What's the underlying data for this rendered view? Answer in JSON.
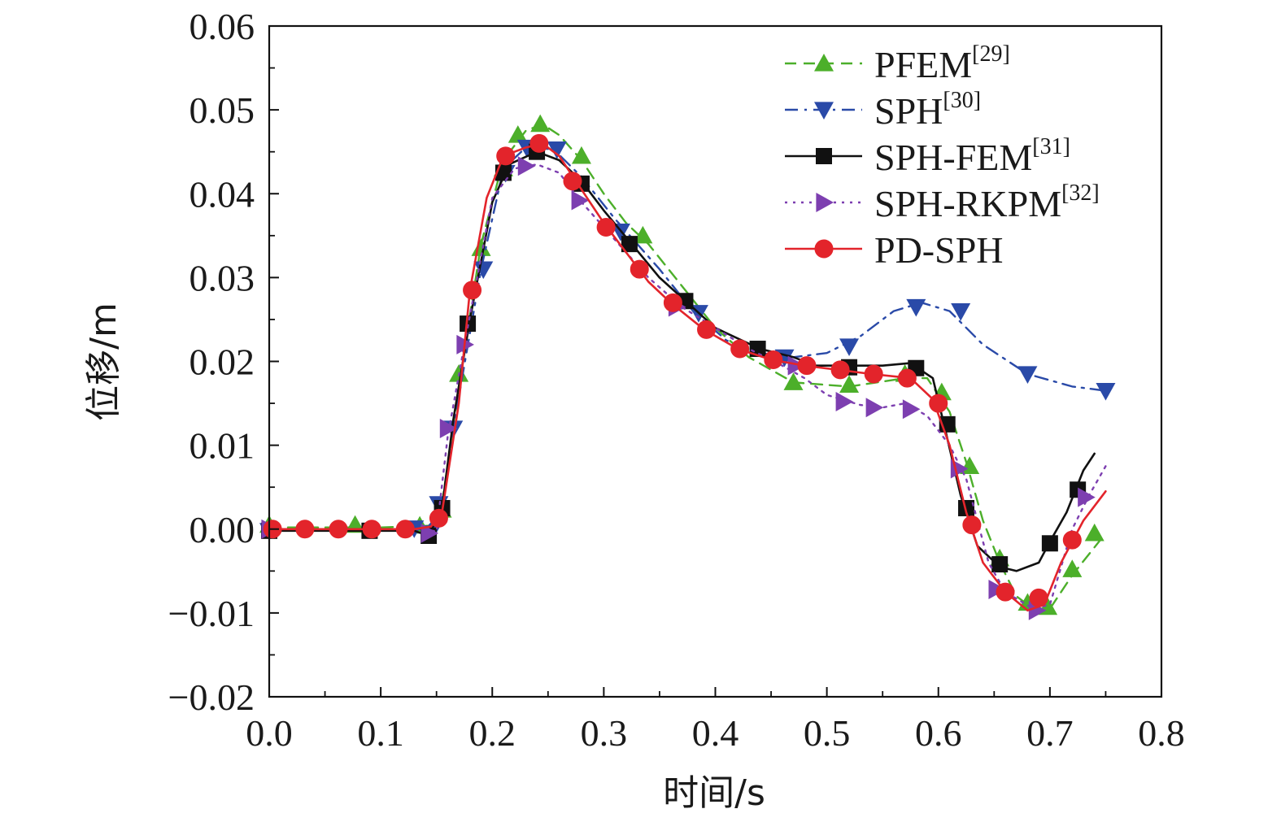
{
  "chart_data": {
    "type": "line",
    "title": "",
    "xlabel": "时间/s",
    "ylabel": "位移/m",
    "xlim": [
      0.0,
      0.8
    ],
    "ylim": [
      -0.02,
      0.06
    ],
    "xticks": [
      "0.0",
      "0.1",
      "0.2",
      "0.3",
      "0.4",
      "0.5",
      "0.6",
      "0.7",
      "0.8"
    ],
    "yticks": [
      "−0.02",
      "−0.01",
      "0.00",
      "0.01",
      "0.02",
      "0.03",
      "0.04",
      "0.05",
      "0.06"
    ],
    "legend_position": "top-right",
    "series": [
      {
        "name": "PFEM",
        "ref": "[29]",
        "color": "#4caf2a",
        "line_style": "dashed",
        "marker": "triangle-up",
        "curve": [
          [
            0.0,
            0.0002
          ],
          [
            0.1,
            0.0002
          ],
          [
            0.145,
            0.0004
          ],
          [
            0.155,
            0.003
          ],
          [
            0.17,
            0.017
          ],
          [
            0.19,
            0.034
          ],
          [
            0.21,
            0.044
          ],
          [
            0.23,
            0.0475
          ],
          [
            0.245,
            0.0483
          ],
          [
            0.26,
            0.047
          ],
          [
            0.28,
            0.044
          ],
          [
            0.3,
            0.04
          ],
          [
            0.32,
            0.0365
          ],
          [
            0.34,
            0.034
          ],
          [
            0.37,
            0.029
          ],
          [
            0.4,
            0.024
          ],
          [
            0.43,
            0.0205
          ],
          [
            0.47,
            0.0175
          ],
          [
            0.5,
            0.0172
          ],
          [
            0.52,
            0.017
          ],
          [
            0.545,
            0.0175
          ],
          [
            0.57,
            0.018
          ],
          [
            0.59,
            0.018
          ],
          [
            0.61,
            0.014
          ],
          [
            0.625,
            0.008
          ],
          [
            0.64,
            0.001
          ],
          [
            0.655,
            -0.004
          ],
          [
            0.67,
            -0.008
          ],
          [
            0.685,
            -0.0095
          ],
          [
            0.7,
            -0.0095
          ],
          [
            0.72,
            -0.0055
          ],
          [
            0.75,
            -0.0005
          ]
        ],
        "markers": [
          [
            0.0,
            0.0005
          ],
          [
            0.077,
            0.0005
          ],
          [
            0.135,
            0.0004
          ],
          [
            0.155,
            0.0023
          ],
          [
            0.17,
            0.0185
          ],
          [
            0.19,
            0.0335
          ],
          [
            0.21,
            0.043
          ],
          [
            0.223,
            0.047
          ],
          [
            0.243,
            0.0483
          ],
          [
            0.28,
            0.0445
          ],
          [
            0.335,
            0.035
          ],
          [
            0.47,
            0.0175
          ],
          [
            0.52,
            0.0172
          ],
          [
            0.57,
            0.0185
          ],
          [
            0.603,
            0.0163
          ],
          [
            0.628,
            0.0075
          ],
          [
            0.655,
            -0.0035
          ],
          [
            0.68,
            -0.0088
          ],
          [
            0.698,
            -0.0093
          ],
          [
            0.72,
            -0.0048
          ],
          [
            0.74,
            -0.0005
          ]
        ]
      },
      {
        "name": "SPH",
        "ref": "[30]",
        "color": "#2a4aa8",
        "line_style": "dash-dot",
        "marker": "triangle-down",
        "curve": [
          [
            0.0,
            0.0
          ],
          [
            0.1,
            0.0
          ],
          [
            0.14,
            0.0
          ],
          [
            0.155,
            0.002
          ],
          [
            0.165,
            0.012
          ],
          [
            0.19,
            0.031
          ],
          [
            0.21,
            0.043
          ],
          [
            0.23,
            0.0455
          ],
          [
            0.255,
            0.0453
          ],
          [
            0.28,
            0.042
          ],
          [
            0.31,
            0.037
          ],
          [
            0.35,
            0.031
          ],
          [
            0.38,
            0.026
          ],
          [
            0.41,
            0.0225
          ],
          [
            0.44,
            0.021
          ],
          [
            0.47,
            0.0205
          ],
          [
            0.5,
            0.021
          ],
          [
            0.53,
            0.023
          ],
          [
            0.56,
            0.026
          ],
          [
            0.585,
            0.027
          ],
          [
            0.61,
            0.026
          ],
          [
            0.64,
            0.022
          ],
          [
            0.68,
            0.0185
          ],
          [
            0.72,
            0.017
          ],
          [
            0.75,
            0.0165
          ]
        ],
        "markers": [
          [
            0.0,
            -0.0002
          ],
          [
            0.13,
            0.0001
          ],
          [
            0.145,
            -0.0005
          ],
          [
            0.152,
            0.003
          ],
          [
            0.165,
            0.012
          ],
          [
            0.192,
            0.031
          ],
          [
            0.212,
            0.0425
          ],
          [
            0.231,
            0.0455
          ],
          [
            0.258,
            0.0453
          ],
          [
            0.315,
            0.0355
          ],
          [
            0.385,
            0.0258
          ],
          [
            0.462,
            0.0205
          ],
          [
            0.52,
            0.0218
          ],
          [
            0.58,
            0.0265
          ],
          [
            0.62,
            0.026
          ],
          [
            0.68,
            0.0185
          ],
          [
            0.75,
            0.0165
          ]
        ]
      },
      {
        "name": "SPH-FEM",
        "ref": "[31]",
        "color": "#111111",
        "line_style": "solid",
        "marker": "square",
        "curve": [
          [
            0.0,
            -0.0002
          ],
          [
            0.09,
            -0.0002
          ],
          [
            0.13,
            -0.0002
          ],
          [
            0.143,
            -0.0008
          ],
          [
            0.155,
            0.0025
          ],
          [
            0.165,
            0.013
          ],
          [
            0.18,
            0.025
          ],
          [
            0.2,
            0.039
          ],
          [
            0.215,
            0.0435
          ],
          [
            0.24,
            0.045
          ],
          [
            0.26,
            0.044
          ],
          [
            0.28,
            0.0415
          ],
          [
            0.3,
            0.038
          ],
          [
            0.325,
            0.034
          ],
          [
            0.35,
            0.03
          ],
          [
            0.375,
            0.027
          ],
          [
            0.4,
            0.024
          ],
          [
            0.44,
            0.0215
          ],
          [
            0.47,
            0.0205
          ],
          [
            0.49,
            0.0195
          ],
          [
            0.52,
            0.0195
          ],
          [
            0.55,
            0.0195
          ],
          [
            0.575,
            0.0198
          ],
          [
            0.595,
            0.018
          ],
          [
            0.605,
            0.0125
          ],
          [
            0.62,
            0.004
          ],
          [
            0.635,
            -0.002
          ],
          [
            0.655,
            -0.0045
          ],
          [
            0.67,
            -0.005
          ],
          [
            0.69,
            -0.004
          ],
          [
            0.7,
            -0.0015
          ],
          [
            0.715,
            0.002
          ],
          [
            0.73,
            0.007
          ],
          [
            0.74,
            0.009
          ]
        ],
        "markers": [
          [
            0.0,
            -0.0002
          ],
          [
            0.09,
            -0.0002
          ],
          [
            0.143,
            -0.0008
          ],
          [
            0.155,
            0.0025
          ],
          [
            0.178,
            0.0245
          ],
          [
            0.21,
            0.0425
          ],
          [
            0.24,
            0.045
          ],
          [
            0.28,
            0.0412
          ],
          [
            0.323,
            0.034
          ],
          [
            0.373,
            0.0272
          ],
          [
            0.438,
            0.0215
          ],
          [
            0.52,
            0.0193
          ],
          [
            0.58,
            0.0192
          ],
          [
            0.608,
            0.0125
          ],
          [
            0.625,
            0.0025
          ],
          [
            0.655,
            -0.0042
          ],
          [
            0.7,
            -0.0017
          ],
          [
            0.725,
            0.0047
          ]
        ]
      },
      {
        "name": "SPH-RKPM",
        "ref": "[32]",
        "color": "#7d3fb0",
        "line_style": "dotted",
        "marker": "triangle-right",
        "curve": [
          [
            0.0,
            0.0
          ],
          [
            0.1,
            0.0
          ],
          [
            0.14,
            0.0
          ],
          [
            0.15,
            -0.0003
          ],
          [
            0.16,
            0.011
          ],
          [
            0.175,
            0.022
          ],
          [
            0.2,
            0.0395
          ],
          [
            0.22,
            0.043
          ],
          [
            0.24,
            0.0435
          ],
          [
            0.26,
            0.0425
          ],
          [
            0.28,
            0.039
          ],
          [
            0.31,
            0.0345
          ],
          [
            0.34,
            0.03
          ],
          [
            0.37,
            0.0265
          ],
          [
            0.4,
            0.024
          ],
          [
            0.43,
            0.0215
          ],
          [
            0.46,
            0.0195
          ],
          [
            0.48,
            0.018
          ],
          [
            0.5,
            0.016
          ],
          [
            0.53,
            0.0148
          ],
          [
            0.55,
            0.0145
          ],
          [
            0.57,
            0.015
          ],
          [
            0.59,
            0.0135
          ],
          [
            0.61,
            0.01
          ],
          [
            0.625,
            0.006
          ],
          [
            0.645,
            -0.004
          ],
          [
            0.66,
            -0.0075
          ],
          [
            0.685,
            -0.0095
          ],
          [
            0.7,
            -0.009
          ],
          [
            0.72,
            0.0
          ],
          [
            0.735,
            0.004
          ],
          [
            0.75,
            0.0075
          ]
        ],
        "markers": [
          [
            0.0,
            0.0
          ],
          [
            0.143,
            -0.0005
          ],
          [
            0.16,
            0.012
          ],
          [
            0.175,
            0.022
          ],
          [
            0.23,
            0.0433
          ],
          [
            0.278,
            0.0392
          ],
          [
            0.365,
            0.0265
          ],
          [
            0.472,
            0.0195
          ],
          [
            0.515,
            0.0152
          ],
          [
            0.542,
            0.0145
          ],
          [
            0.575,
            0.0143
          ],
          [
            0.618,
            0.0072
          ],
          [
            0.652,
            -0.0072
          ],
          [
            0.688,
            -0.0097
          ],
          [
            0.732,
            0.0038
          ]
        ]
      },
      {
        "name": "PD-SPH",
        "ref": "",
        "color": "#e3242b",
        "line_style": "solid",
        "marker": "circle",
        "curve": [
          [
            0.0,
            0.0
          ],
          [
            0.1,
            0.0
          ],
          [
            0.13,
            0.0
          ],
          [
            0.145,
            0.0003
          ],
          [
            0.155,
            0.002
          ],
          [
            0.17,
            0.015
          ],
          [
            0.18,
            0.0285
          ],
          [
            0.195,
            0.0395
          ],
          [
            0.21,
            0.0445
          ],
          [
            0.23,
            0.0455
          ],
          [
            0.245,
            0.046
          ],
          [
            0.26,
            0.0445
          ],
          [
            0.275,
            0.0415
          ],
          [
            0.3,
            0.0365
          ],
          [
            0.32,
            0.033
          ],
          [
            0.34,
            0.0295
          ],
          [
            0.36,
            0.027
          ],
          [
            0.39,
            0.0238
          ],
          [
            0.42,
            0.0215
          ],
          [
            0.45,
            0.0202
          ],
          [
            0.48,
            0.0195
          ],
          [
            0.51,
            0.019
          ],
          [
            0.54,
            0.0185
          ],
          [
            0.575,
            0.018
          ],
          [
            0.595,
            0.0155
          ],
          [
            0.61,
            0.01
          ],
          [
            0.625,
            0.002
          ],
          [
            0.64,
            -0.004
          ],
          [
            0.66,
            -0.0075
          ],
          [
            0.68,
            -0.0097
          ],
          [
            0.695,
            -0.009
          ],
          [
            0.71,
            -0.004
          ],
          [
            0.73,
            0.001
          ],
          [
            0.75,
            0.0045
          ]
        ],
        "markers": [
          [
            0.003,
            0.0
          ],
          [
            0.032,
            0.0
          ],
          [
            0.062,
            0.0
          ],
          [
            0.092,
            0.0
          ],
          [
            0.122,
            0.0
          ],
          [
            0.152,
            0.0013
          ],
          [
            0.182,
            0.0285
          ],
          [
            0.212,
            0.0445
          ],
          [
            0.242,
            0.046
          ],
          [
            0.272,
            0.0415
          ],
          [
            0.302,
            0.036
          ],
          [
            0.332,
            0.031
          ],
          [
            0.362,
            0.027
          ],
          [
            0.392,
            0.0238
          ],
          [
            0.422,
            0.0215
          ],
          [
            0.452,
            0.0202
          ],
          [
            0.482,
            0.0195
          ],
          [
            0.512,
            0.019
          ],
          [
            0.542,
            0.0185
          ],
          [
            0.572,
            0.018
          ],
          [
            0.6,
            0.015
          ],
          [
            0.63,
            0.0005
          ],
          [
            0.66,
            -0.0075
          ],
          [
            0.69,
            -0.0082
          ],
          [
            0.72,
            -0.0013
          ]
        ]
      }
    ]
  }
}
